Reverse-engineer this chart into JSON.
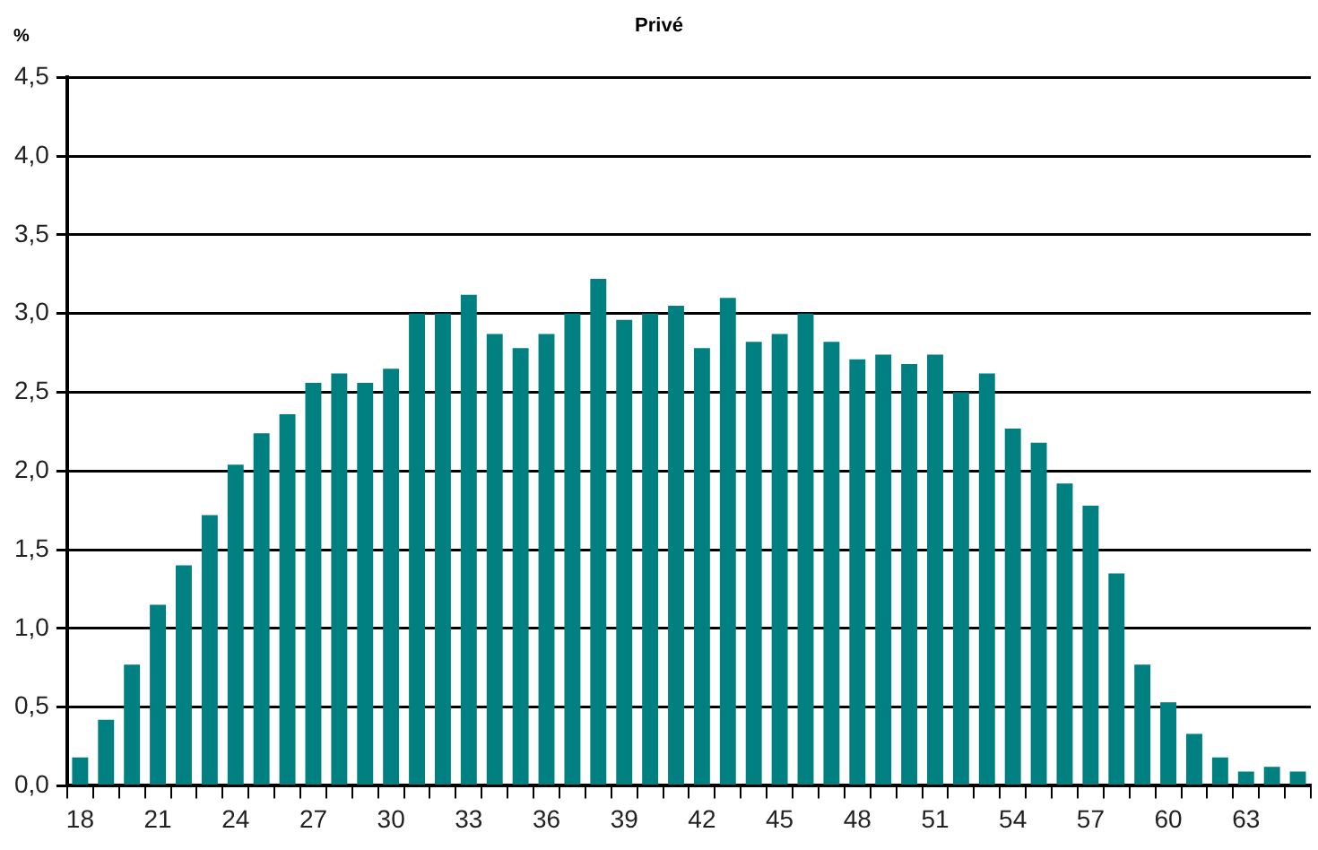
{
  "chart_data": {
    "type": "bar",
    "title": "Privé",
    "ylabel": "%",
    "categories": [
      "18",
      null,
      null,
      "21",
      null,
      null,
      "24",
      null,
      null,
      "27",
      null,
      null,
      "30",
      null,
      null,
      "33",
      null,
      null,
      "36",
      null,
      null,
      "39",
      null,
      null,
      "42",
      null,
      null,
      "45",
      null,
      null,
      "48",
      null,
      null,
      "51",
      null,
      null,
      "54",
      null,
      null,
      "57",
      null,
      null,
      "60",
      null,
      null,
      "63",
      null,
      null
    ],
    "values": [
      0.18,
      0.42,
      0.77,
      1.15,
      1.4,
      1.72,
      2.04,
      2.24,
      2.36,
      2.56,
      2.62,
      2.56,
      2.65,
      3.0,
      3.0,
      3.12,
      2.87,
      2.78,
      2.87,
      3.0,
      3.22,
      2.96,
      3.0,
      3.05,
      2.78,
      3.1,
      2.82,
      2.87,
      3.0,
      2.82,
      2.71,
      2.74,
      2.68,
      2.74,
      2.5,
      2.62,
      2.27,
      2.18,
      1.92,
      1.78,
      1.35,
      0.77,
      0.53,
      0.33,
      0.18,
      0.09,
      0.12,
      0.09
    ],
    "color": "#008080",
    "ylim": [
      0,
      4.5
    ],
    "yticks": [
      {
        "value": 0,
        "label": "0,0"
      },
      {
        "value": 0.5,
        "label": "0,5"
      },
      {
        "value": 1,
        "label": "1,0"
      },
      {
        "value": 1.5,
        "label": "1,5"
      },
      {
        "value": 2,
        "label": "2,0"
      },
      {
        "value": 2.5,
        "label": "2,5"
      },
      {
        "value": 3,
        "label": "3,0"
      },
      {
        "value": 3.5,
        "label": "3,5"
      },
      {
        "value": 4,
        "label": "4,0"
      },
      {
        "value": 4.5,
        "label": "4,5"
      }
    ],
    "grid": "y",
    "legend": false
  }
}
